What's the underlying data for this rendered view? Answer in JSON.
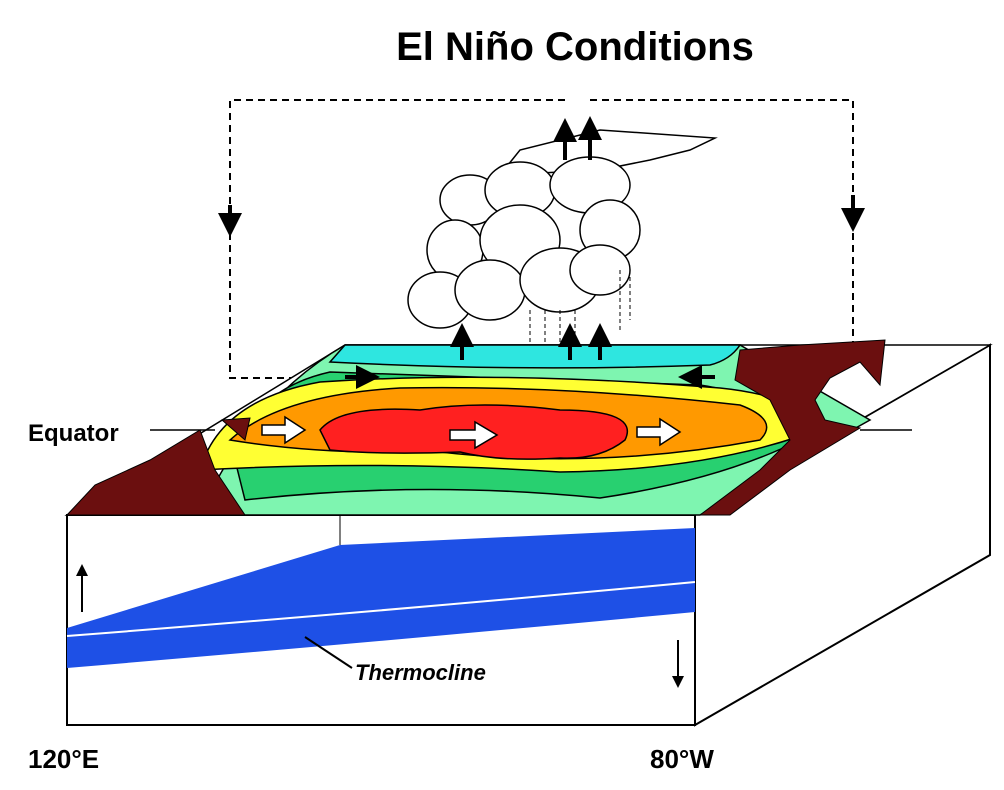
{
  "title": "El Niño Conditions",
  "labels": {
    "equator": "Equator",
    "thermocline": "Thermocline",
    "west": "120°E",
    "east": "80°W"
  }
}
